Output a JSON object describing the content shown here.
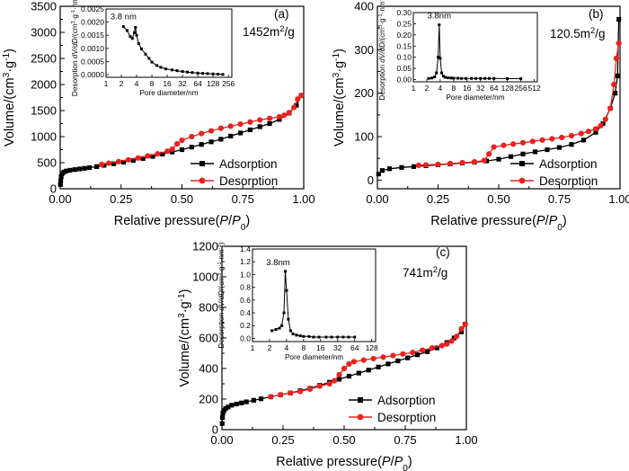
{
  "figure": {
    "x_label": "Relative pressure(P/P0)",
    "y_label": "Volume/(cm3·g-1)",
    "legend": [
      "Adsorption",
      "Desorption"
    ],
    "inset_x_label": "Pore diameter/nm",
    "inset_y_label": "Desorption dV/dD/(cm3·g-1·nm-1)"
  },
  "colors": {
    "adsorption": "#000000",
    "desorption": "#e8231f",
    "axis": "#000000"
  },
  "chart_data": [
    {
      "id": "a",
      "panel_label": "(a)",
      "type": "line",
      "title": "",
      "surface_area": "1452m2/g",
      "xlabel": "Relative pressure(P/P0)",
      "ylabel": "Volume/(cm3·g-1)",
      "xlim": [
        0,
        1.0
      ],
      "ylim": [
        0,
        3500
      ],
      "xticks": [
        0.0,
        0.25,
        0.5,
        0.75,
        1.0
      ],
      "yticks": [
        0,
        500,
        1000,
        1500,
        2000,
        2500,
        3000,
        3500
      ],
      "legend_position": "bottom-right",
      "series": [
        {
          "name": "Adsorption",
          "x": [
            0.001,
            0.002,
            0.004,
            0.008,
            0.015,
            0.025,
            0.04,
            0.06,
            0.08,
            0.1,
            0.12,
            0.15,
            0.18,
            0.22,
            0.26,
            0.3,
            0.34,
            0.38,
            0.42,
            0.46,
            0.5,
            0.54,
            0.58,
            0.62,
            0.66,
            0.7,
            0.74,
            0.78,
            0.82,
            0.86,
            0.9,
            0.94,
            0.97,
            0.99
          ],
          "y": [
            80,
            150,
            230,
            290,
            320,
            340,
            355,
            368,
            380,
            392,
            405,
            425,
            450,
            480,
            510,
            545,
            580,
            620,
            665,
            705,
            750,
            800,
            850,
            900,
            950,
            1010,
            1070,
            1130,
            1190,
            1250,
            1330,
            1450,
            1600,
            1790
          ]
        },
        {
          "name": "Desorption",
          "x": [
            0.99,
            0.975,
            0.96,
            0.94,
            0.92,
            0.9,
            0.86,
            0.82,
            0.78,
            0.74,
            0.7,
            0.66,
            0.62,
            0.58,
            0.54,
            0.5,
            0.48,
            0.46,
            0.44,
            0.4,
            0.36,
            0.32,
            0.28,
            0.24,
            0.2,
            0.17
          ],
          "y": [
            1790,
            1720,
            1560,
            1460,
            1410,
            1380,
            1350,
            1320,
            1280,
            1240,
            1200,
            1160,
            1110,
            1060,
            1000,
            930,
            860,
            760,
            720,
            670,
            630,
            590,
            555,
            520,
            490,
            465
          ]
        }
      ],
      "inset": {
        "xlabel": "Pore diameter/nm",
        "ylabel": "Desorption dV/dD/(cm3·g-1·nm-1)",
        "xscale": "log2",
        "xticks": [
          1,
          2,
          4,
          8,
          16,
          32,
          64,
          128,
          256
        ],
        "xlim": [
          1,
          300
        ],
        "ylim": [
          -0.0001,
          0.0025
        ],
        "yticks": [
          0.0,
          0.0005,
          0.001,
          0.0015,
          0.002,
          0.0025
        ],
        "annotation": "3.8 nm",
        "x": [
          2.2,
          2.6,
          3.0,
          3.3,
          3.6,
          3.8,
          4.0,
          4.4,
          5,
          6,
          7,
          8,
          10,
          12,
          15,
          20,
          25,
          32,
          40,
          50,
          64,
          80,
          100,
          128,
          160,
          200
        ],
        "y": [
          0.00183,
          0.00168,
          0.00145,
          0.00138,
          0.0016,
          0.0018,
          0.0015,
          0.00118,
          0.00098,
          0.00078,
          0.00062,
          0.00048,
          0.00035,
          0.00028,
          0.00022,
          0.00018,
          0.00015,
          0.00012,
          0.0001,
          8e-05,
          6e-05,
          5e-05,
          4e-05,
          3e-05,
          2e-05,
          1e-05
        ]
      }
    },
    {
      "id": "b",
      "panel_label": "(b)",
      "type": "line",
      "title": "",
      "surface_area": "120.5m2/g",
      "xlabel": "Relative pressure(P/P0)",
      "ylabel": "Volume/(cm3·g-1)",
      "xlim": [
        0,
        1.0
      ],
      "ylim": [
        -20,
        400
      ],
      "xticks": [
        0.0,
        0.25,
        0.5,
        0.75,
        1.0
      ],
      "yticks": [
        0,
        100,
        200,
        300,
        400
      ],
      "legend_position": "bottom-right",
      "series": [
        {
          "name": "Adsorption",
          "x": [
            0.005,
            0.02,
            0.05,
            0.1,
            0.15,
            0.2,
            0.25,
            0.3,
            0.35,
            0.4,
            0.45,
            0.5,
            0.55,
            0.6,
            0.65,
            0.7,
            0.75,
            0.8,
            0.85,
            0.9,
            0.93,
            0.96,
            0.98,
            0.99,
            0.995
          ],
          "y": [
            14,
            22,
            26,
            29,
            31,
            33,
            35,
            37,
            39,
            41,
            44,
            48,
            54,
            60,
            65,
            70,
            75,
            82,
            92,
            110,
            130,
            165,
            200,
            240,
            370
          ]
        },
        {
          "name": "Desorption",
          "x": [
            0.995,
            0.985,
            0.975,
            0.96,
            0.94,
            0.92,
            0.9,
            0.87,
            0.84,
            0.8,
            0.76,
            0.72,
            0.68,
            0.64,
            0.6,
            0.56,
            0.52,
            0.48,
            0.46,
            0.44,
            0.4,
            0.35,
            0.3,
            0.25,
            0.2,
            0.17
          ],
          "y": [
            315,
            280,
            220,
            165,
            140,
            125,
            118,
            112,
            107,
            102,
            98,
            95,
            92,
            89,
            86,
            83,
            80,
            76,
            60,
            45,
            42,
            40,
            38,
            36,
            35,
            34
          ]
        }
      ],
      "inset": {
        "xlabel": "Pore diameter/nm",
        "ylabel": "Desorption dV/dD/(cm3·g-1·nm-1)",
        "xscale": "log2",
        "xticks": [
          1,
          2,
          4,
          8,
          16,
          32,
          64,
          128,
          256,
          512
        ],
        "xlim": [
          1,
          600
        ],
        "ylim": [
          -0.01,
          0.3
        ],
        "yticks": [
          0.0,
          0.05,
          0.1,
          0.15,
          0.2,
          0.25,
          0.3
        ],
        "annotation": "3.8nm",
        "x": [
          2.2,
          2.6,
          3.0,
          3.3,
          3.6,
          3.8,
          4.0,
          4.3,
          4.7,
          5.2,
          6,
          7,
          8,
          10,
          12,
          15,
          20,
          25,
          32,
          40,
          50,
          64,
          128,
          256
        ],
        "y": [
          0.005,
          0.007,
          0.012,
          0.03,
          0.1,
          0.245,
          0.095,
          0.03,
          0.015,
          0.01,
          0.008,
          0.007,
          0.006,
          0.006,
          0.005,
          0.005,
          0.005,
          0.005,
          0.005,
          0.005,
          0.005,
          0.005,
          0.004,
          0.004
        ]
      }
    },
    {
      "id": "c",
      "panel_label": "(c)",
      "type": "line",
      "title": "",
      "surface_area": "741m2/g",
      "xlabel": "Relative pressure(P/P0)",
      "ylabel": "Volume/(cm3·g-1)",
      "xlim": [
        0,
        1.0
      ],
      "ylim": [
        0,
        1200
      ],
      "xticks": [
        0.0,
        0.25,
        0.5,
        0.75,
        1.0
      ],
      "yticks": [
        0,
        200,
        400,
        600,
        800,
        1000,
        1200
      ],
      "legend_position": "bottom-right",
      "series": [
        {
          "name": "Adsorption",
          "x": [
            0.001,
            0.002,
            0.004,
            0.008,
            0.015,
            0.025,
            0.04,
            0.06,
            0.08,
            0.1,
            0.13,
            0.16,
            0.2,
            0.24,
            0.28,
            0.32,
            0.36,
            0.4,
            0.44,
            0.48,
            0.52,
            0.56,
            0.6,
            0.64,
            0.68,
            0.72,
            0.76,
            0.8,
            0.84,
            0.88,
            0.92,
            0.95,
            0.98,
            0.995
          ],
          "y": [
            40,
            80,
            110,
            125,
            138,
            148,
            160,
            168,
            175,
            182,
            192,
            202,
            215,
            228,
            240,
            255,
            270,
            290,
            310,
            330,
            350,
            370,
            390,
            410,
            430,
            450,
            470,
            490,
            510,
            535,
            570,
            600,
            640,
            690
          ]
        },
        {
          "name": "Desorption",
          "x": [
            0.995,
            0.98,
            0.96,
            0.94,
            0.92,
            0.9,
            0.86,
            0.82,
            0.78,
            0.74,
            0.7,
            0.66,
            0.62,
            0.58,
            0.54,
            0.52,
            0.5,
            0.48,
            0.46,
            0.44,
            0.4,
            0.36,
            0.32,
            0.28,
            0.24,
            0.2
          ],
          "y": [
            690,
            660,
            610,
            580,
            560,
            550,
            535,
            520,
            505,
            495,
            485,
            475,
            465,
            455,
            445,
            430,
            400,
            360,
            320,
            300,
            285,
            265,
            250,
            240,
            228,
            215
          ]
        }
      ],
      "inset": {
        "xlabel": "Pore diameter/nm",
        "ylabel": "Desorption dV/dD/(cm3·g-1·nm-1)",
        "xscale": "log2",
        "xticks": [
          1,
          2,
          4,
          8,
          16,
          32,
          64,
          128
        ],
        "xlim": [
          1,
          150
        ],
        "ylim": [
          -0.05,
          1.4
        ],
        "yticks": [
          0.0,
          0.2,
          0.4,
          0.6,
          0.8,
          1.0,
          1.2,
          1.4
        ],
        "annotation": "3.8nm",
        "x": [
          2.2,
          2.6,
          3.0,
          3.3,
          3.6,
          3.8,
          4.0,
          4.3,
          4.7,
          5.2,
          6,
          7,
          8,
          10,
          12,
          15,
          20,
          25,
          32,
          40,
          50,
          64
        ],
        "y": [
          0.12,
          0.14,
          0.16,
          0.2,
          0.4,
          1.05,
          0.75,
          0.3,
          0.12,
          0.07,
          0.05,
          0.04,
          0.03,
          0.03,
          0.02,
          0.02,
          0.02,
          0.02,
          0.02,
          0.02,
          0.02,
          0.02
        ]
      }
    }
  ]
}
